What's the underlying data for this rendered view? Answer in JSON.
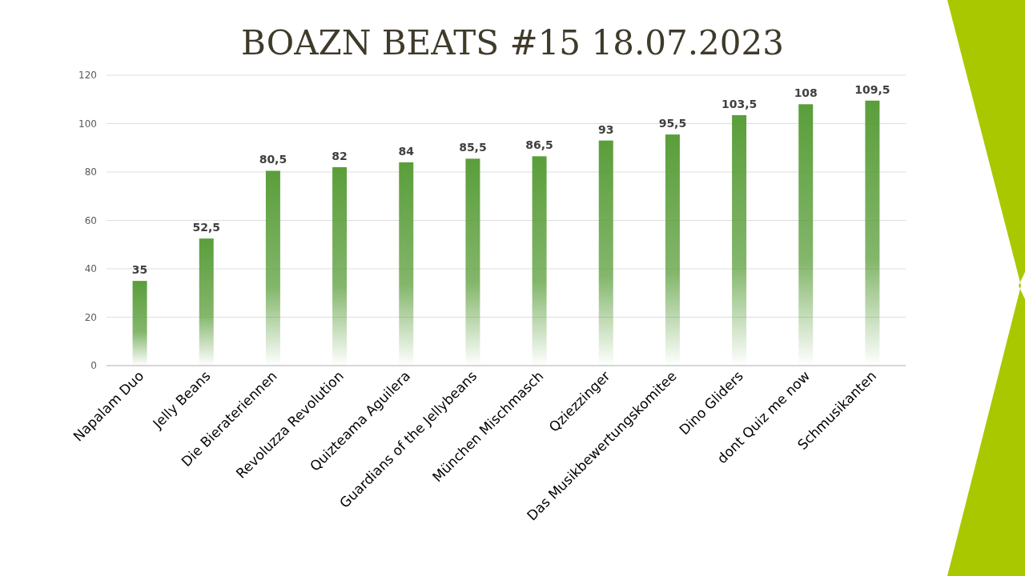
{
  "chart_data": {
    "type": "bar",
    "title": "BOAZN BEATS #15 18.07.2023",
    "categories": [
      "Napalam Duo",
      "Jelly Beans",
      "Die Bierateriennen",
      "Revoluzza Revolution",
      "Quizteama Aguilera",
      "Guardians of the Jellybeans",
      "München Mischmasch",
      "Qziezzinger",
      "Das Musikbewertungskomitee",
      "Dino Gliders",
      "dont Quiz me now",
      "Schmusikanten"
    ],
    "values": [
      35,
      52.5,
      80.5,
      82,
      84,
      85.5,
      86.5,
      93,
      95.5,
      103.5,
      108,
      109.5
    ],
    "value_labels": [
      "35",
      "52,5",
      "80,5",
      "82",
      "84",
      "85,5",
      "86,5",
      "93",
      "95,5",
      "103,5",
      "108",
      "109,5"
    ],
    "color": "#5a9e3a",
    "ylim": [
      0,
      120
    ],
    "yticks": [
      0,
      20,
      40,
      60,
      80,
      100,
      120
    ],
    "grid": "y"
  }
}
